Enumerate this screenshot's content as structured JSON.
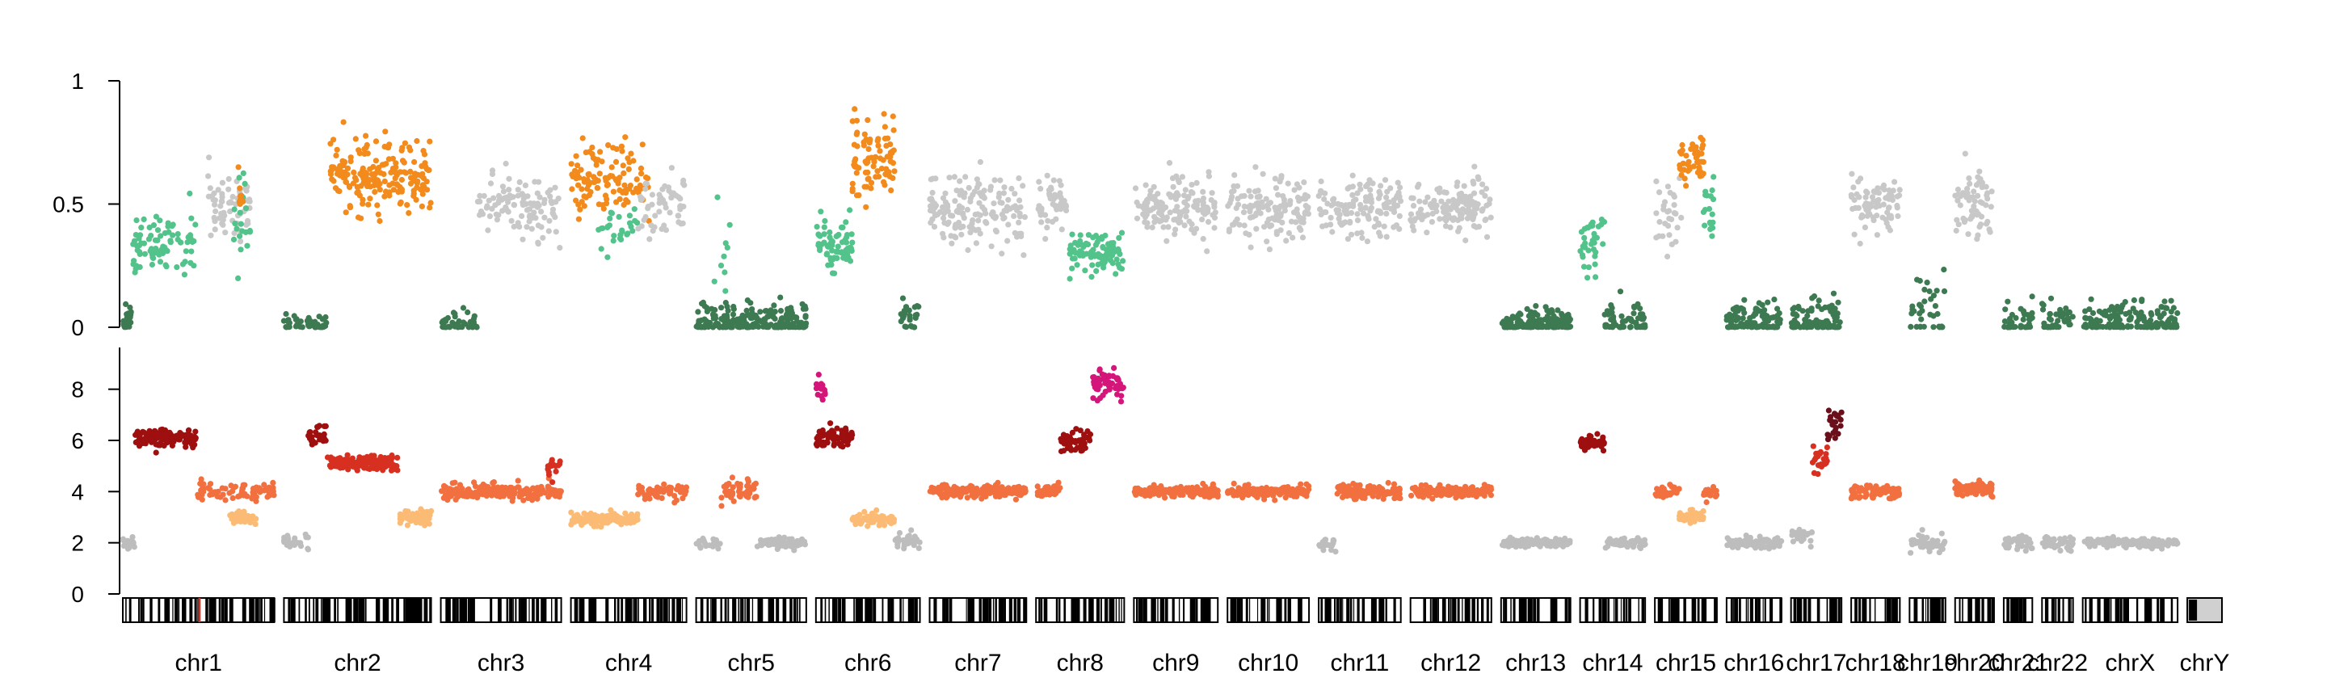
{
  "chart_data": {
    "type": "scatter",
    "chromosomes": [
      "chr1",
      "chr2",
      "chr3",
      "chr4",
      "chr5",
      "chr6",
      "chr7",
      "chr8",
      "chr9",
      "chr10",
      "chr11",
      "chr12",
      "chr13",
      "chr14",
      "chr15",
      "chr16",
      "chr17",
      "chr18",
      "chr19",
      "chr20",
      "chr21",
      "chr22",
      "chrX",
      "chrY"
    ],
    "chromosome_lengths_mb": [
      249,
      242,
      198,
      190,
      181,
      171,
      159,
      145,
      138,
      134,
      135,
      133,
      114,
      107,
      102,
      90,
      83,
      80,
      59,
      64,
      47,
      51,
      156,
      57
    ],
    "panels": [
      {
        "id": "baf",
        "ylim": [
          0,
          1
        ],
        "ticks": [
          0,
          0.5,
          1
        ],
        "tick_labels": [
          "0",
          "0.5",
          "1"
        ],
        "segments": [
          {
            "chrom": "chr1",
            "start": 0,
            "end": 15,
            "value": 0.04,
            "spread": 0.04,
            "color": "#3d7a52",
            "density": 1.5
          },
          {
            "chrom": "chr1",
            "start": 15,
            "end": 120,
            "value": 0.33,
            "spread": 0.06,
            "color": "#52c38a",
            "density": 0.8
          },
          {
            "chrom": "chr1",
            "start": 140,
            "end": 210,
            "value": 0.5,
            "spread": 0.08,
            "color": "#c8c8c8",
            "density": 0.9
          },
          {
            "chrom": "chr1",
            "start": 180,
            "end": 210,
            "value": 0.45,
            "spread": 0.1,
            "color": "#52c38a",
            "density": 0.7
          },
          {
            "chrom": "chr1",
            "start": 190,
            "end": 200,
            "value": 0.55,
            "spread": 0.05,
            "color": "#f28a1c",
            "density": 0.8
          },
          {
            "chrom": "chr2",
            "start": 0,
            "end": 70,
            "value": 0.01,
            "spread": 0.02,
            "color": "#3d7a52",
            "density": 0.6
          },
          {
            "chrom": "chr2",
            "start": 75,
            "end": 242,
            "value": 0.62,
            "spread": 0.07,
            "color": "#f28a1c",
            "density": 1.2
          },
          {
            "chrom": "chr3",
            "start": 0,
            "end": 60,
            "value": 0.01,
            "spread": 0.03,
            "color": "#3d7a52",
            "density": 0.8
          },
          {
            "chrom": "chr3",
            "start": 60,
            "end": 198,
            "value": 0.5,
            "spread": 0.06,
            "color": "#c8c8c8",
            "density": 0.8
          },
          {
            "chrom": "chr4",
            "start": 0,
            "end": 130,
            "value": 0.6,
            "spread": 0.08,
            "color": "#f28a1c",
            "density": 0.9
          },
          {
            "chrom": "chr4",
            "start": 40,
            "end": 110,
            "value": 0.4,
            "spread": 0.05,
            "color": "#52c38a",
            "density": 0.4
          },
          {
            "chrom": "chr4",
            "start": 110,
            "end": 190,
            "value": 0.5,
            "spread": 0.06,
            "color": "#c8c8c8",
            "density": 0.7
          },
          {
            "chrom": "chr5",
            "start": 0,
            "end": 181,
            "value": 0.02,
            "spread": 0.04,
            "color": "#3d7a52",
            "density": 1.2
          },
          {
            "chrom": "chr5",
            "start": 30,
            "end": 60,
            "value": 0.35,
            "spread": 0.15,
            "color": "#52c38a",
            "density": 0.3
          },
          {
            "chrom": "chr6",
            "start": 0,
            "end": 60,
            "value": 0.33,
            "spread": 0.05,
            "color": "#52c38a",
            "density": 1.2
          },
          {
            "chrom": "chr6",
            "start": 60,
            "end": 130,
            "value": 0.68,
            "spread": 0.08,
            "color": "#f28a1c",
            "density": 1.2
          },
          {
            "chrom": "chr6",
            "start": 140,
            "end": 171,
            "value": 0.03,
            "spread": 0.04,
            "color": "#3d7a52",
            "density": 0.8
          },
          {
            "chrom": "chr7",
            "start": 0,
            "end": 159,
            "value": 0.48,
            "spread": 0.07,
            "color": "#c8c8c8",
            "density": 1.0
          },
          {
            "chrom": "chr8",
            "start": 0,
            "end": 50,
            "value": 0.5,
            "spread": 0.05,
            "color": "#c8c8c8",
            "density": 1.0
          },
          {
            "chrom": "chr8",
            "start": 55,
            "end": 145,
            "value": 0.3,
            "spread": 0.05,
            "color": "#52c38a",
            "density": 1.0
          },
          {
            "chrom": "chr9",
            "start": 0,
            "end": 138,
            "value": 0.49,
            "spread": 0.06,
            "color": "#c8c8c8",
            "density": 1.0
          },
          {
            "chrom": "chr10",
            "start": 0,
            "end": 134,
            "value": 0.47,
            "spread": 0.06,
            "color": "#c8c8c8",
            "density": 1.0
          },
          {
            "chrom": "chr11",
            "start": 0,
            "end": 135,
            "value": 0.49,
            "spread": 0.06,
            "color": "#c8c8c8",
            "density": 1.0
          },
          {
            "chrom": "chr12",
            "start": 0,
            "end": 133,
            "value": 0.49,
            "spread": 0.06,
            "color": "#c8c8c8",
            "density": 1.0
          },
          {
            "chrom": "chr13",
            "start": 0,
            "end": 114,
            "value": 0.01,
            "spread": 0.03,
            "color": "#3d7a52",
            "density": 1.4
          },
          {
            "chrom": "chr14",
            "start": 0,
            "end": 40,
            "value": 0.36,
            "spread": 0.06,
            "color": "#52c38a",
            "density": 0.9
          },
          {
            "chrom": "chr14",
            "start": 40,
            "end": 107,
            "value": 0.02,
            "spread": 0.04,
            "color": "#3d7a52",
            "density": 1.0
          },
          {
            "chrom": "chr15",
            "start": 0,
            "end": 50,
            "value": 0.45,
            "spread": 0.08,
            "color": "#c8c8c8",
            "density": 0.6
          },
          {
            "chrom": "chr15",
            "start": 40,
            "end": 80,
            "value": 0.67,
            "spread": 0.05,
            "color": "#f28a1c",
            "density": 1.2
          },
          {
            "chrom": "chr15",
            "start": 80,
            "end": 102,
            "value": 0.45,
            "spread": 0.06,
            "color": "#52c38a",
            "density": 0.8
          },
          {
            "chrom": "chr16",
            "start": 0,
            "end": 90,
            "value": 0.02,
            "spread": 0.04,
            "color": "#3d7a52",
            "density": 1.2
          },
          {
            "chrom": "chr17",
            "start": 0,
            "end": 83,
            "value": 0.02,
            "spread": 0.04,
            "color": "#3d7a52",
            "density": 1.3
          },
          {
            "chrom": "chr18",
            "start": 0,
            "end": 80,
            "value": 0.5,
            "spread": 0.06,
            "color": "#c8c8c8",
            "density": 1.0
          },
          {
            "chrom": "chr19",
            "start": 0,
            "end": 59,
            "value": 0.05,
            "spread": 0.08,
            "color": "#3d7a52",
            "density": 0.6
          },
          {
            "chrom": "chr20",
            "start": 0,
            "end": 64,
            "value": 0.5,
            "spread": 0.07,
            "color": "#c8c8c8",
            "density": 1.0
          },
          {
            "chrom": "chr21",
            "start": 0,
            "end": 47,
            "value": 0.02,
            "spread": 0.04,
            "color": "#3d7a52",
            "density": 0.8
          },
          {
            "chrom": "chr22",
            "start": 0,
            "end": 51,
            "value": 0.02,
            "spread": 0.04,
            "color": "#3d7a52",
            "density": 0.8
          },
          {
            "chrom": "chrX",
            "start": 0,
            "end": 156,
            "value": 0.02,
            "spread": 0.05,
            "color": "#3d7a52",
            "density": 1.0
          }
        ]
      },
      {
        "id": "copy_number",
        "ylim": [
          0,
          9
        ],
        "ticks": [
          0,
          2,
          4,
          6,
          8
        ],
        "tick_labels": [
          "0",
          "2",
          "4",
          "6",
          "8"
        ],
        "segments": [
          {
            "chrom": "chr1",
            "start": 0,
            "end": 20,
            "value": 2.0,
            "spread": 0.12,
            "color": "#bdbdbd",
            "density": 1.0
          },
          {
            "chrom": "chr1",
            "start": 20,
            "end": 120,
            "value": 6.1,
            "spread": 0.15,
            "color": "#9e0f0f",
            "density": 1.2
          },
          {
            "chrom": "chr1",
            "start": 120,
            "end": 249,
            "value": 4.0,
            "spread": 0.2,
            "color": "#f2703f",
            "density": 0.6
          },
          {
            "chrom": "chr1",
            "start": 175,
            "end": 220,
            "value": 3.0,
            "spread": 0.15,
            "color": "#fcbb74",
            "density": 0.7
          },
          {
            "chrom": "chr2",
            "start": 0,
            "end": 40,
            "value": 2.0,
            "spread": 0.15,
            "color": "#bdbdbd",
            "density": 0.7
          },
          {
            "chrom": "chr2",
            "start": 40,
            "end": 70,
            "value": 6.1,
            "spread": 0.2,
            "color": "#9e0f0f",
            "density": 0.8
          },
          {
            "chrom": "chr2",
            "start": 70,
            "end": 190,
            "value": 5.1,
            "spread": 0.15,
            "color": "#d73020",
            "density": 1.2
          },
          {
            "chrom": "chr2",
            "start": 190,
            "end": 242,
            "value": 3.0,
            "spread": 0.15,
            "color": "#fcbb74",
            "density": 1.0
          },
          {
            "chrom": "chr3",
            "start": 0,
            "end": 198,
            "value": 4.0,
            "spread": 0.15,
            "color": "#f2703f",
            "density": 1.0
          },
          {
            "chrom": "chr3",
            "start": 175,
            "end": 198,
            "value": 5.0,
            "spread": 0.2,
            "color": "#d73020",
            "density": 0.7
          },
          {
            "chrom": "chr4",
            "start": 0,
            "end": 110,
            "value": 2.9,
            "spread": 0.12,
            "color": "#fcbb74",
            "density": 1.1
          },
          {
            "chrom": "chr4",
            "start": 110,
            "end": 190,
            "value": 4.0,
            "spread": 0.15,
            "color": "#f2703f",
            "density": 0.8
          },
          {
            "chrom": "chr5",
            "start": 0,
            "end": 40,
            "value": 2.0,
            "spread": 0.15,
            "color": "#bdbdbd",
            "density": 0.5
          },
          {
            "chrom": "chr5",
            "start": 40,
            "end": 100,
            "value": 4.0,
            "spread": 0.2,
            "color": "#f2703f",
            "density": 0.8
          },
          {
            "chrom": "chr5",
            "start": 100,
            "end": 181,
            "value": 2.0,
            "spread": 0.1,
            "color": "#bdbdbd",
            "density": 1.0
          },
          {
            "chrom": "chr6",
            "start": 0,
            "end": 60,
            "value": 6.1,
            "spread": 0.2,
            "color": "#9e0f0f",
            "density": 1.2
          },
          {
            "chrom": "chr6",
            "start": 0,
            "end": 15,
            "value": 8.0,
            "spread": 0.25,
            "color": "#d4157a",
            "density": 1.2
          },
          {
            "chrom": "chr6",
            "start": 60,
            "end": 130,
            "value": 2.9,
            "spread": 0.12,
            "color": "#fcbb74",
            "density": 1.1
          },
          {
            "chrom": "chr6",
            "start": 130,
            "end": 171,
            "value": 2.1,
            "spread": 0.15,
            "color": "#bdbdbd",
            "density": 0.8
          },
          {
            "chrom": "chr7",
            "start": 0,
            "end": 159,
            "value": 4.0,
            "spread": 0.12,
            "color": "#f2703f",
            "density": 1.2
          },
          {
            "chrom": "chr8",
            "start": 0,
            "end": 40,
            "value": 4.0,
            "spread": 0.12,
            "color": "#f2703f",
            "density": 1.0
          },
          {
            "chrom": "chr8",
            "start": 40,
            "end": 90,
            "value": 6.0,
            "spread": 0.2,
            "color": "#9e0f0f",
            "density": 1.0
          },
          {
            "chrom": "chr8",
            "start": 90,
            "end": 145,
            "value": 8.2,
            "spread": 0.3,
            "color": "#d4157a",
            "density": 1.0
          },
          {
            "chrom": "chr9",
            "start": 0,
            "end": 138,
            "value": 4.0,
            "spread": 0.12,
            "color": "#f2703f",
            "density": 1.0
          },
          {
            "chrom": "chr10",
            "start": 0,
            "end": 134,
            "value": 4.0,
            "spread": 0.12,
            "color": "#f2703f",
            "density": 1.2
          },
          {
            "chrom": "chr11",
            "start": 0,
            "end": 30,
            "value": 2.0,
            "spread": 0.12,
            "color": "#bdbdbd",
            "density": 0.7
          },
          {
            "chrom": "chr11",
            "start": 30,
            "end": 135,
            "value": 4.0,
            "spread": 0.12,
            "color": "#f2703f",
            "density": 1.2
          },
          {
            "chrom": "chr12",
            "start": 0,
            "end": 133,
            "value": 4.0,
            "spread": 0.12,
            "color": "#f2703f",
            "density": 1.2
          },
          {
            "chrom": "chr13",
            "start": 0,
            "end": 114,
            "value": 2.0,
            "spread": 0.08,
            "color": "#bdbdbd",
            "density": 1.4
          },
          {
            "chrom": "chr14",
            "start": 0,
            "end": 40,
            "value": 5.9,
            "spread": 0.15,
            "color": "#9e0f0f",
            "density": 1.3
          },
          {
            "chrom": "chr14",
            "start": 40,
            "end": 107,
            "value": 2.0,
            "spread": 0.1,
            "color": "#bdbdbd",
            "density": 1.0
          },
          {
            "chrom": "chr15",
            "start": 0,
            "end": 40,
            "value": 4.0,
            "spread": 0.15,
            "color": "#f2703f",
            "density": 0.8
          },
          {
            "chrom": "chr15",
            "start": 40,
            "end": 80,
            "value": 3.0,
            "spread": 0.12,
            "color": "#fcbb74",
            "density": 1.2
          },
          {
            "chrom": "chr15",
            "start": 80,
            "end": 102,
            "value": 4.0,
            "spread": 0.15,
            "color": "#f2703f",
            "density": 0.8
          },
          {
            "chrom": "chr16",
            "start": 0,
            "end": 90,
            "value": 2.0,
            "spread": 0.1,
            "color": "#bdbdbd",
            "density": 1.2
          },
          {
            "chrom": "chr17",
            "start": 0,
            "end": 35,
            "value": 2.2,
            "spread": 0.15,
            "color": "#bdbdbd",
            "density": 0.6
          },
          {
            "chrom": "chr17",
            "start": 35,
            "end": 60,
            "value": 5.2,
            "spread": 0.3,
            "color": "#d73020",
            "density": 1.0
          },
          {
            "chrom": "chr17",
            "start": 55,
            "end": 83,
            "value": 6.5,
            "spread": 0.3,
            "color": "#6b0f1a",
            "density": 0.8
          },
          {
            "chrom": "chr18",
            "start": 0,
            "end": 80,
            "value": 4.0,
            "spread": 0.12,
            "color": "#f2703f",
            "density": 1.2
          },
          {
            "chrom": "chr19",
            "start": 0,
            "end": 59,
            "value": 2.0,
            "spread": 0.2,
            "color": "#bdbdbd",
            "density": 0.8
          },
          {
            "chrom": "chr20",
            "start": 0,
            "end": 64,
            "value": 4.1,
            "spread": 0.12,
            "color": "#f2703f",
            "density": 1.3
          },
          {
            "chrom": "chr21",
            "start": 0,
            "end": 47,
            "value": 2.0,
            "spread": 0.12,
            "color": "#bdbdbd",
            "density": 0.8
          },
          {
            "chrom": "chr22",
            "start": 0,
            "end": 51,
            "value": 2.0,
            "spread": 0.12,
            "color": "#bdbdbd",
            "density": 0.9
          },
          {
            "chrom": "chrX",
            "start": 0,
            "end": 156,
            "value": 2.0,
            "spread": 0.1,
            "color": "#bdbdbd",
            "density": 1.0
          }
        ]
      }
    ],
    "ideogram_colors": {
      "background": "#ffffff",
      "band": "#000000",
      "border": "#000000",
      "centromere": "#c0392b"
    }
  }
}
